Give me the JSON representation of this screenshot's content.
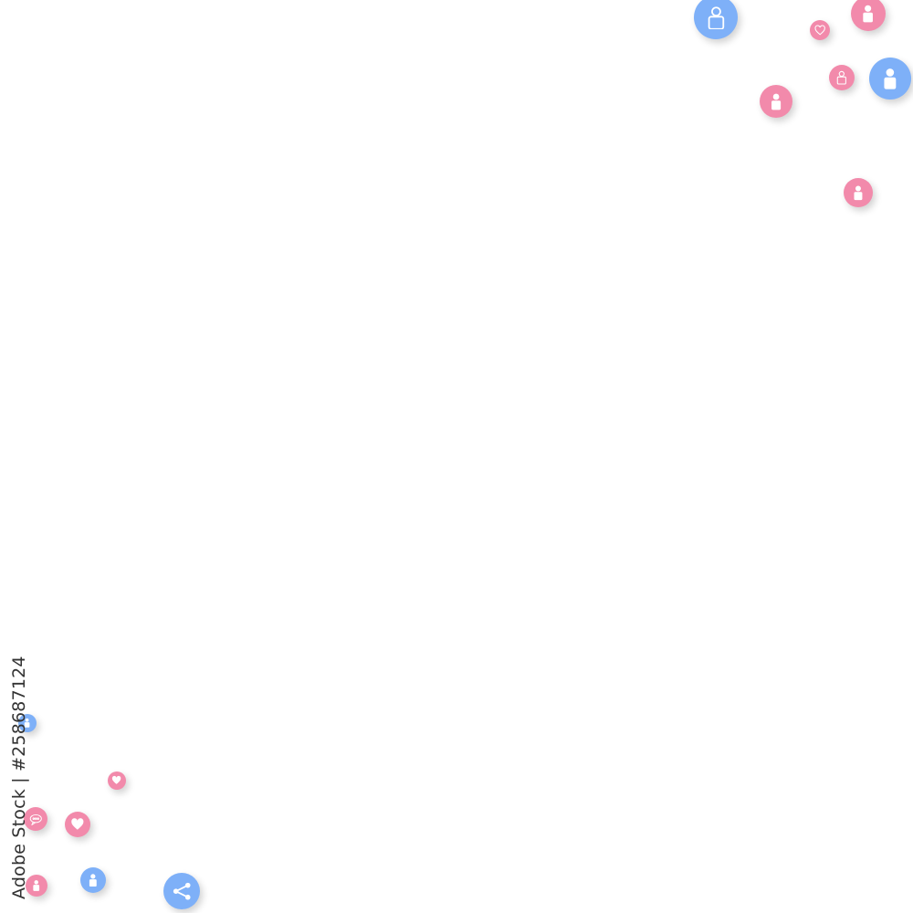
{
  "colors": {
    "pink": "#f28aab",
    "blue": "#7eb0f8",
    "icon": "#ffffff"
  },
  "watermark": "Adobe Stock | #258687124",
  "bubbles": [
    {
      "icon": "user-outline-icon",
      "color": "blue"
    },
    {
      "icon": "heart-outline-icon",
      "color": "pink"
    },
    {
      "icon": "user-icon",
      "color": "pink"
    },
    {
      "icon": "user-outline-icon",
      "color": "pink"
    },
    {
      "icon": "user-icon",
      "color": "blue"
    },
    {
      "icon": "user-icon",
      "color": "pink"
    },
    {
      "icon": "user-icon",
      "color": "pink"
    },
    {
      "icon": "user-icon",
      "color": "blue"
    },
    {
      "icon": "heart-icon",
      "color": "pink"
    },
    {
      "icon": "chat-icon",
      "color": "pink"
    },
    {
      "icon": "heart-icon",
      "color": "pink"
    },
    {
      "icon": "user-icon",
      "color": "pink"
    },
    {
      "icon": "user-icon",
      "color": "blue"
    },
    {
      "icon": "share-icon",
      "color": "blue"
    }
  ]
}
